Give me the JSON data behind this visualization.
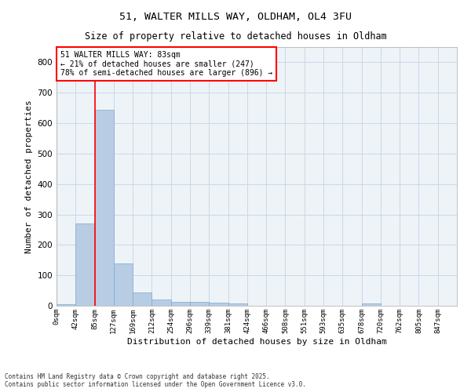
{
  "title_line1": "51, WALTER MILLS WAY, OLDHAM, OL4 3FU",
  "title_line2": "Size of property relative to detached houses in Oldham",
  "xlabel": "Distribution of detached houses by size in Oldham",
  "ylabel": "Number of detached properties",
  "footnote": "Contains HM Land Registry data © Crown copyright and database right 2025.\nContains public sector information licensed under the Open Government Licence v3.0.",
  "bin_labels": [
    "0sqm",
    "42sqm",
    "85sqm",
    "127sqm",
    "169sqm",
    "212sqm",
    "254sqm",
    "296sqm",
    "339sqm",
    "381sqm",
    "424sqm",
    "466sqm",
    "508sqm",
    "551sqm",
    "593sqm",
    "635sqm",
    "678sqm",
    "720sqm",
    "762sqm",
    "805sqm",
    "847sqm"
  ],
  "bar_values": [
    5,
    270,
    645,
    140,
    43,
    20,
    13,
    13,
    10,
    8,
    0,
    0,
    0,
    0,
    0,
    0,
    7,
    0,
    0,
    0,
    0
  ],
  "bar_color": "#b8cce4",
  "bar_edge_color": "#7aadcf",
  "grid_color": "#c8d8e8",
  "background_color": "#eef3f8",
  "property_bin_index": 2,
  "annotation_text": "51 WALTER MILLS WAY: 83sqm\n← 21% of detached houses are smaller (247)\n78% of semi-detached houses are larger (896) →",
  "annotation_box_color": "white",
  "annotation_box_edge_color": "red",
  "vline_color": "red",
  "ylim": [
    0,
    850
  ],
  "yticks": [
    0,
    100,
    200,
    300,
    400,
    500,
    600,
    700,
    800
  ]
}
